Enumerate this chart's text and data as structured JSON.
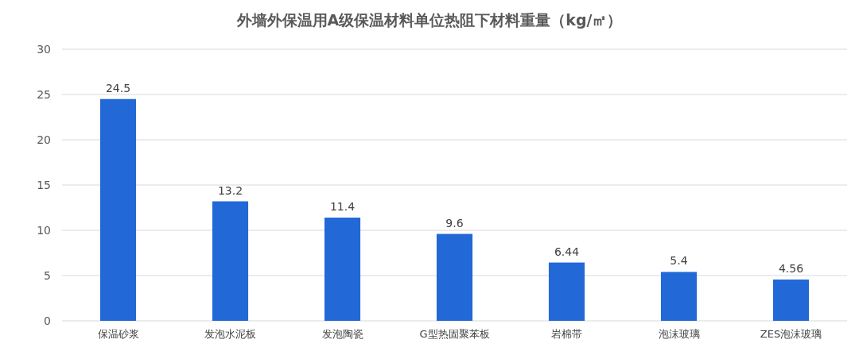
{
  "chart_data": {
    "type": "bar",
    "title": "外墙外保温用A级保温材料单位热阻下材料重量（kg/㎡）",
    "categories": [
      "保温砂浆",
      "发泡水泥板",
      "发泡陶瓷",
      "G型热固聚苯板",
      "岩棉带",
      "泡沫玻璃",
      "ZES泡沫玻璃"
    ],
    "values": [
      24.5,
      13.2,
      11.4,
      9.6,
      6.44,
      5.4,
      4.56
    ],
    "color": "#2268d6",
    "ylim": [
      0,
      30
    ],
    "yticks": [
      0,
      5,
      10,
      15,
      20,
      25,
      30
    ],
    "grid": "y",
    "data_labels": true
  }
}
